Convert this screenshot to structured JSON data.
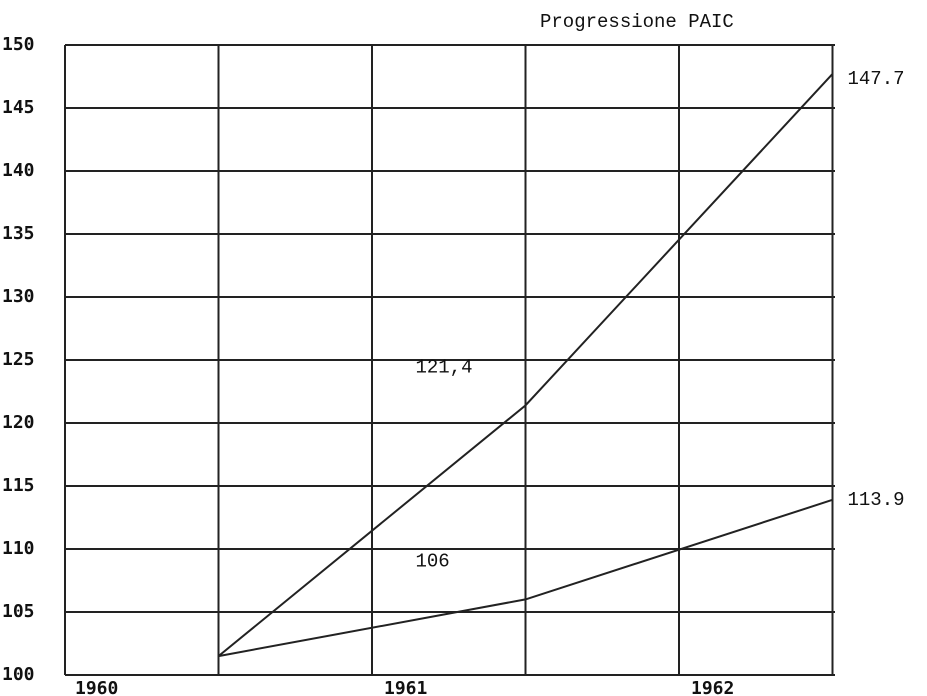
{
  "chart_data": {
    "type": "line",
    "title": "Progressione PAIC",
    "x": [
      1960.5,
      1961.5,
      1962.5
    ],
    "series": [
      {
        "values": [
          101.5,
          121.4,
          147.7
        ],
        "value_labels": [
          null,
          "121,4",
          "147.7"
        ],
        "color": "#222222"
      },
      {
        "values": [
          101.5,
          106,
          113.9
        ],
        "value_labels": [
          null,
          "106",
          "113.9"
        ],
        "color": "#222222"
      }
    ],
    "xlim": [
      1960,
      1962.5
    ],
    "xticks": [
      1960,
      1961,
      1962
    ],
    "x_minor_ticks": [
      1960.5,
      1961.5,
      1962.5
    ],
    "ylim": [
      100,
      150
    ],
    "yticks": [
      100,
      105,
      110,
      115,
      120,
      125,
      130,
      135,
      140,
      145,
      150
    ],
    "grid": true
  }
}
